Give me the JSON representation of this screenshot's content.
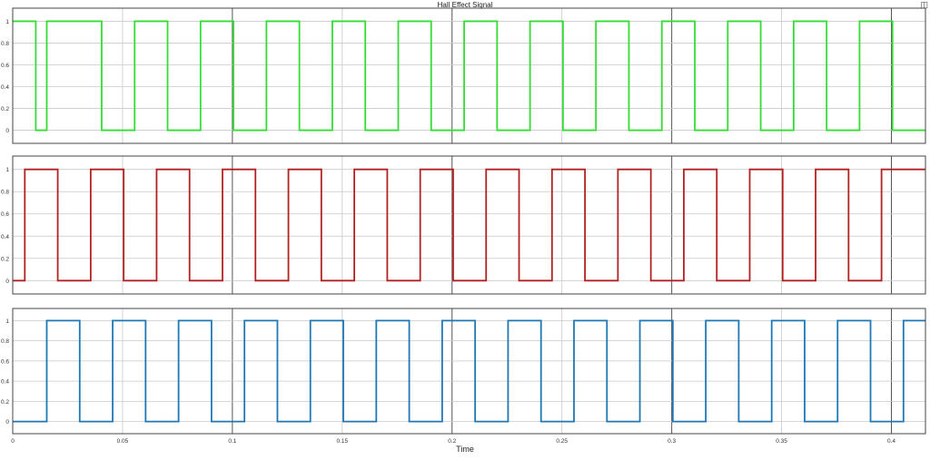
{
  "figure": {
    "title": "Hall Effect Signal",
    "xlabel": "Time",
    "corner_icon": "dock-icon"
  },
  "chart_data": [
    {
      "type": "line",
      "series": [
        {
          "color": "#33dd33",
          "x": [
            0,
            0.0105,
            0.0105,
            0.0155,
            0.0155,
            0.0405,
            0.0405,
            0.0555,
            0.0555,
            0.0705,
            0.0705,
            0.0855,
            0.0855,
            0.1005,
            0.1005,
            0.1155,
            0.1155,
            0.1305,
            0.1305,
            0.1455,
            0.1455,
            0.1605,
            0.1605,
            0.1755,
            0.1755,
            0.1905,
            0.1905,
            0.2055,
            0.2055,
            0.2205,
            0.2205,
            0.2355,
            0.2355,
            0.2505,
            0.2505,
            0.2655,
            0.2655,
            0.2805,
            0.2805,
            0.2955,
            0.2955,
            0.3105,
            0.3105,
            0.3255,
            0.3255,
            0.3405,
            0.3405,
            0.3555,
            0.3555,
            0.3705,
            0.3705,
            0.3855,
            0.3855,
            0.4005,
            0.4005,
            0.4155
          ],
          "y": [
            1,
            1,
            0,
            0,
            1,
            1,
            0,
            0,
            1,
            1,
            0,
            0,
            1,
            1,
            0,
            0,
            1,
            1,
            0,
            0,
            1,
            1,
            0,
            0,
            1,
            1,
            0,
            0,
            1,
            1,
            0,
            0,
            1,
            1,
            0,
            0,
            1,
            1,
            0,
            0,
            1,
            1,
            0,
            0,
            1,
            1,
            0,
            0,
            1,
            1,
            0,
            0,
            1,
            1,
            0,
            0
          ]
        }
      ],
      "yticks": [
        "0",
        "0.2",
        "0.4",
        "0.6",
        "0.8",
        "1"
      ],
      "ylim": [
        -0.12,
        1.12
      ],
      "xlim": [
        0,
        0.4155
      ],
      "grid": true
    },
    {
      "type": "line",
      "series": [
        {
          "color": "#b22222",
          "x": [
            0,
            0.0055,
            0.0055,
            0.0205,
            0.0205,
            0.0355,
            0.0355,
            0.0505,
            0.0505,
            0.0655,
            0.0655,
            0.0805,
            0.0805,
            0.0955,
            0.0955,
            0.1105,
            0.1105,
            0.1255,
            0.1255,
            0.1405,
            0.1405,
            0.1555,
            0.1555,
            0.1705,
            0.1705,
            0.1855,
            0.1855,
            0.2005,
            0.2005,
            0.2155,
            0.2155,
            0.2305,
            0.2305,
            0.2455,
            0.2455,
            0.2605,
            0.2605,
            0.2755,
            0.2755,
            0.2905,
            0.2905,
            0.3055,
            0.3055,
            0.3205,
            0.3205,
            0.3355,
            0.3355,
            0.3505,
            0.3505,
            0.3655,
            0.3655,
            0.3805,
            0.3805,
            0.3955,
            0.3955,
            0.4105,
            0.4105,
            0.4155
          ],
          "y": [
            0,
            0,
            1,
            1,
            0,
            0,
            1,
            1,
            0,
            0,
            1,
            1,
            0,
            0,
            1,
            1,
            0,
            0,
            1,
            1,
            0,
            0,
            1,
            1,
            0,
            0,
            1,
            1,
            0,
            0,
            1,
            1,
            0,
            0,
            1,
            1,
            0,
            0,
            1,
            1,
            0,
            0,
            1,
            1,
            0,
            0,
            1,
            1,
            0,
            0,
            1,
            1,
            0,
            0,
            1,
            1,
            1,
            1
          ]
        }
      ],
      "yticks": [
        "0",
        "0.2",
        "0.4",
        "0.6",
        "0.8",
        "1"
      ],
      "ylim": [
        -0.12,
        1.12
      ],
      "xlim": [
        0,
        0.4155
      ],
      "grid": true
    },
    {
      "type": "line",
      "series": [
        {
          "color": "#1f77b4",
          "x": [
            0,
            0.0155,
            0.0155,
            0.0305,
            0.0305,
            0.0455,
            0.0455,
            0.0605,
            0.0605,
            0.0755,
            0.0755,
            0.0905,
            0.0905,
            0.1055,
            0.1055,
            0.1205,
            0.1205,
            0.1355,
            0.1355,
            0.1505,
            0.1505,
            0.1655,
            0.1655,
            0.1805,
            0.1805,
            0.1955,
            0.1955,
            0.2105,
            0.2105,
            0.2255,
            0.2255,
            0.2405,
            0.2405,
            0.2555,
            0.2555,
            0.2705,
            0.2705,
            0.2855,
            0.2855,
            0.3005,
            0.3005,
            0.3155,
            0.3155,
            0.3305,
            0.3305,
            0.3455,
            0.3455,
            0.3605,
            0.3605,
            0.3755,
            0.3755,
            0.3905,
            0.3905,
            0.4055,
            0.4055,
            0.4155
          ],
          "y": [
            0,
            0,
            1,
            1,
            0,
            0,
            1,
            1,
            0,
            0,
            1,
            1,
            0,
            0,
            1,
            1,
            0,
            0,
            1,
            1,
            0,
            0,
            1,
            1,
            0,
            0,
            1,
            1,
            0,
            0,
            1,
            1,
            0,
            0,
            1,
            1,
            0,
            0,
            1,
            1,
            0,
            0,
            1,
            1,
            0,
            0,
            1,
            1,
            0,
            0,
            1,
            1,
            0,
            0,
            1,
            1
          ]
        }
      ],
      "yticks": [
        "0",
        "0.2",
        "0.4",
        "0.6",
        "0.8",
        "1"
      ],
      "ylim": [
        -0.12,
        1.12
      ],
      "xlim": [
        0,
        0.4155
      ],
      "xticks": [
        "0",
        "0.05",
        "0.1",
        "0.15",
        "0.2",
        "0.25",
        "0.3",
        "0.35",
        "0.4"
      ],
      "grid": true
    }
  ]
}
